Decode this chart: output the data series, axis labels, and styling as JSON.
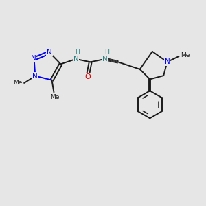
{
  "bg_color": "#e6e6e6",
  "bond_color": "#1a1a1a",
  "N_color": "#0000ee",
  "O_color": "#dd0000",
  "NH_color": "#2a8080",
  "figsize": [
    3.0,
    3.0
  ],
  "dpi": 100,
  "xlim": [
    0,
    10
  ],
  "ylim": [
    0,
    10
  ]
}
